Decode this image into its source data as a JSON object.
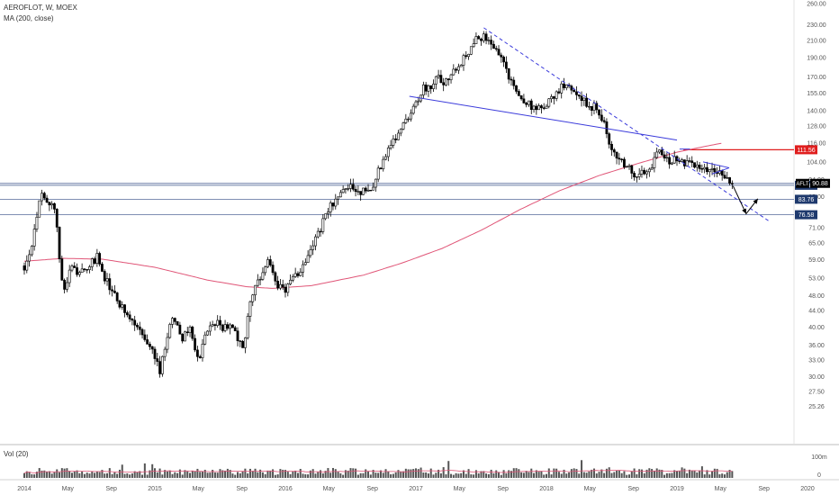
{
  "header": {
    "symbol_line": "AEROFLOT, W, MOEX",
    "indicator_line": "MA (200, close)"
  },
  "volume_panel": {
    "label": "Vol (20)",
    "axis_labels": [
      "100m",
      "0"
    ]
  },
  "colors": {
    "candle": "#000000",
    "ma_line": "#e05577",
    "trend_blue": "#3b3bdb",
    "hline_blue": "#6d7fa8",
    "resistance_red": "#e01e1e",
    "price_tag_bg": "#000000",
    "level_tag_bg": "#1f3a6e"
  },
  "chart_data": {
    "type": "candlestick",
    "y_scale": "log",
    "ylim": [
      22,
      260
    ],
    "y_ticks": [
      "260.00",
      "230.00",
      "210.00",
      "190.00",
      "170.00",
      "155.00",
      "140.00",
      "128.00",
      "116.00",
      "104.00",
      "94.00",
      "85.00",
      "71.00",
      "65.00",
      "59.00",
      "53.00",
      "48.00",
      "44.00",
      "40.00",
      "36.00",
      "33.00",
      "30.00",
      "27.50",
      "25.26"
    ],
    "x_ticks": [
      "2014",
      "May",
      "Sep",
      "2015",
      "May",
      "Sep",
      "2016",
      "May",
      "Sep",
      "2017",
      "May",
      "Sep",
      "2018",
      "May",
      "Sep",
      "2019",
      "May",
      "Sep",
      "2020"
    ],
    "current_price": {
      "label": "AFLT",
      "value": "90.88"
    },
    "levels": [
      {
        "value": "90.82",
        "color": "blue"
      },
      {
        "value": "83.76",
        "color": "blue"
      },
      {
        "value": "76.58",
        "color": "blue"
      },
      {
        "value": "111.56",
        "color": "red"
      }
    ],
    "price_path": [
      [
        2014.0,
        57
      ],
      [
        2014.06,
        65
      ],
      [
        2014.12,
        86
      ],
      [
        2014.18,
        84
      ],
      [
        2014.24,
        76
      ],
      [
        2014.3,
        48
      ],
      [
        2014.36,
        57
      ],
      [
        2014.42,
        55
      ],
      [
        2014.48,
        56
      ],
      [
        2014.56,
        60
      ],
      [
        2014.62,
        53
      ],
      [
        2014.7,
        47
      ],
      [
        2014.78,
        43
      ],
      [
        2014.86,
        40
      ],
      [
        2014.92,
        37
      ],
      [
        2014.98,
        35
      ],
      [
        2015.02,
        33
      ],
      [
        2015.04,
        31
      ],
      [
        2015.08,
        36
      ],
      [
        2015.14,
        43
      ],
      [
        2015.2,
        37
      ],
      [
        2015.26,
        40
      ],
      [
        2015.3,
        36
      ],
      [
        2015.34,
        33
      ],
      [
        2015.4,
        39
      ],
      [
        2015.46,
        41
      ],
      [
        2015.52,
        40
      ],
      [
        2015.58,
        41
      ],
      [
        2015.64,
        37
      ],
      [
        2015.68,
        35
      ],
      [
        2015.72,
        44
      ],
      [
        2015.78,
        51
      ],
      [
        2015.84,
        57
      ],
      [
        2015.88,
        58
      ],
      [
        2015.92,
        51
      ],
      [
        2016.0,
        50
      ],
      [
        2016.06,
        53
      ],
      [
        2016.12,
        56
      ],
      [
        2016.18,
        62
      ],
      [
        2016.26,
        70
      ],
      [
        2016.34,
        80
      ],
      [
        2016.42,
        86
      ],
      [
        2016.5,
        90
      ],
      [
        2016.58,
        88
      ],
      [
        2016.64,
        87
      ],
      [
        2016.7,
        96
      ],
      [
        2016.76,
        108
      ],
      [
        2016.84,
        120
      ],
      [
        2016.92,
        133
      ],
      [
        2017.0,
        145
      ],
      [
        2017.06,
        162
      ],
      [
        2017.12,
        155
      ],
      [
        2017.16,
        172
      ],
      [
        2017.22,
        165
      ],
      [
        2017.28,
        178
      ],
      [
        2017.34,
        185
      ],
      [
        2017.4,
        196
      ],
      [
        2017.46,
        218
      ],
      [
        2017.52,
        213
      ],
      [
        2017.58,
        205
      ],
      [
        2017.64,
        196
      ],
      [
        2017.72,
        168
      ],
      [
        2017.8,
        150
      ],
      [
        2017.86,
        146
      ],
      [
        2017.92,
        140
      ],
      [
        2017.98,
        142
      ],
      [
        2018.04,
        150
      ],
      [
        2018.1,
        158
      ],
      [
        2018.16,
        165
      ],
      [
        2018.22,
        158
      ],
      [
        2018.3,
        145
      ],
      [
        2018.38,
        142
      ],
      [
        2018.44,
        130
      ],
      [
        2018.48,
        115
      ],
      [
        2018.52,
        108
      ],
      [
        2018.58,
        104
      ],
      [
        2018.64,
        100
      ],
      [
        2018.7,
        95
      ],
      [
        2018.74,
        98
      ],
      [
        2018.8,
        100
      ],
      [
        2018.86,
        114
      ],
      [
        2018.9,
        108
      ],
      [
        2018.96,
        104
      ],
      [
        2019.02,
        106
      ],
      [
        2019.08,
        103
      ],
      [
        2019.14,
        101
      ],
      [
        2019.2,
        98
      ],
      [
        2019.26,
        100
      ],
      [
        2019.32,
        99
      ],
      [
        2019.36,
        96
      ],
      [
        2019.4,
        93
      ],
      [
        2019.43,
        90.88
      ]
    ],
    "ma200": [
      [
        2014.0,
        58.5
      ],
      [
        2014.3,
        59.5
      ],
      [
        2014.6,
        59.2
      ],
      [
        2015.0,
        56.5
      ],
      [
        2015.4,
        52.5
      ],
      [
        2015.7,
        50.5
      ],
      [
        2015.9,
        50.0
      ],
      [
        2016.2,
        50.8
      ],
      [
        2016.6,
        54.0
      ],
      [
        2016.9,
        58.0
      ],
      [
        2017.2,
        63.0
      ],
      [
        2017.5,
        70.0
      ],
      [
        2017.8,
        79.0
      ],
      [
        2018.1,
        88.0
      ],
      [
        2018.4,
        96.0
      ],
      [
        2018.7,
        103.0
      ],
      [
        2019.0,
        110.0
      ],
      [
        2019.2,
        113.5
      ],
      [
        2019.35,
        116.0
      ]
    ],
    "trendlines": [
      {
        "style": "dashed",
        "from": [
          2017.52,
          226
        ],
        "to": [
          2019.7,
          74
        ]
      },
      {
        "style": "solid",
        "from": [
          2016.95,
          152
        ],
        "to": [
          2019.0,
          118
        ]
      },
      {
        "style": "solid",
        "from": [
          2019.02,
          112
        ],
        "to": [
          2019.1,
          112
        ]
      },
      {
        "style": "solid",
        "from": [
          2019.2,
          104
        ],
        "to": [
          2019.4,
          100.5
        ]
      },
      {
        "style": "solid",
        "from": [
          2019.27,
          97
        ],
        "to": [
          2019.4,
          100.5
        ]
      }
    ],
    "projection": [
      [
        2019.43,
        90.5
      ],
      [
        2019.53,
        77
      ],
      [
        2019.62,
        84
      ]
    ],
    "volume_scale_max": 100
  }
}
